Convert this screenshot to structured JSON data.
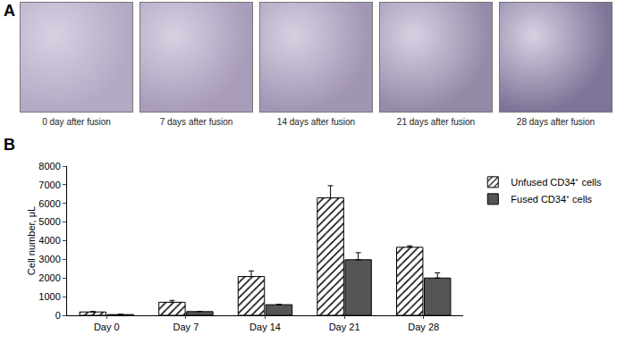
{
  "panel_a": {
    "label": "A",
    "captions": [
      "0 day after fusion",
      "7 days after fusion",
      "14 days after fusion",
      "21 days after fusion",
      "28 days after fusion"
    ]
  },
  "panel_b_label": "B",
  "chart_data": {
    "type": "bar",
    "categories": [
      "Day 0",
      "Day 7",
      "Day 14",
      "Day 21",
      "Day 28"
    ],
    "series": [
      {
        "name": "Unfused CD34⁺ cells",
        "color": "#ffffff",
        "marker": "hatched",
        "values": [
          180,
          700,
          2080,
          6300,
          3650
        ],
        "errors": [
          20,
          100,
          300,
          650,
          80
        ]
      },
      {
        "name": "Fused CD34⁺ cells",
        "color": "#555555",
        "values": [
          40,
          200,
          570,
          2980,
          2000
        ],
        "errors": [
          10,
          10,
          10,
          380,
          280
        ]
      }
    ],
    "y_label": "Cell number, μL",
    "ylim": [
      0,
      8000
    ],
    "yticks": [
      0,
      1000,
      2000,
      3000,
      4000,
      5000,
      6000,
      7000,
      8000
    ],
    "grid": false,
    "legend": "upper right"
  }
}
